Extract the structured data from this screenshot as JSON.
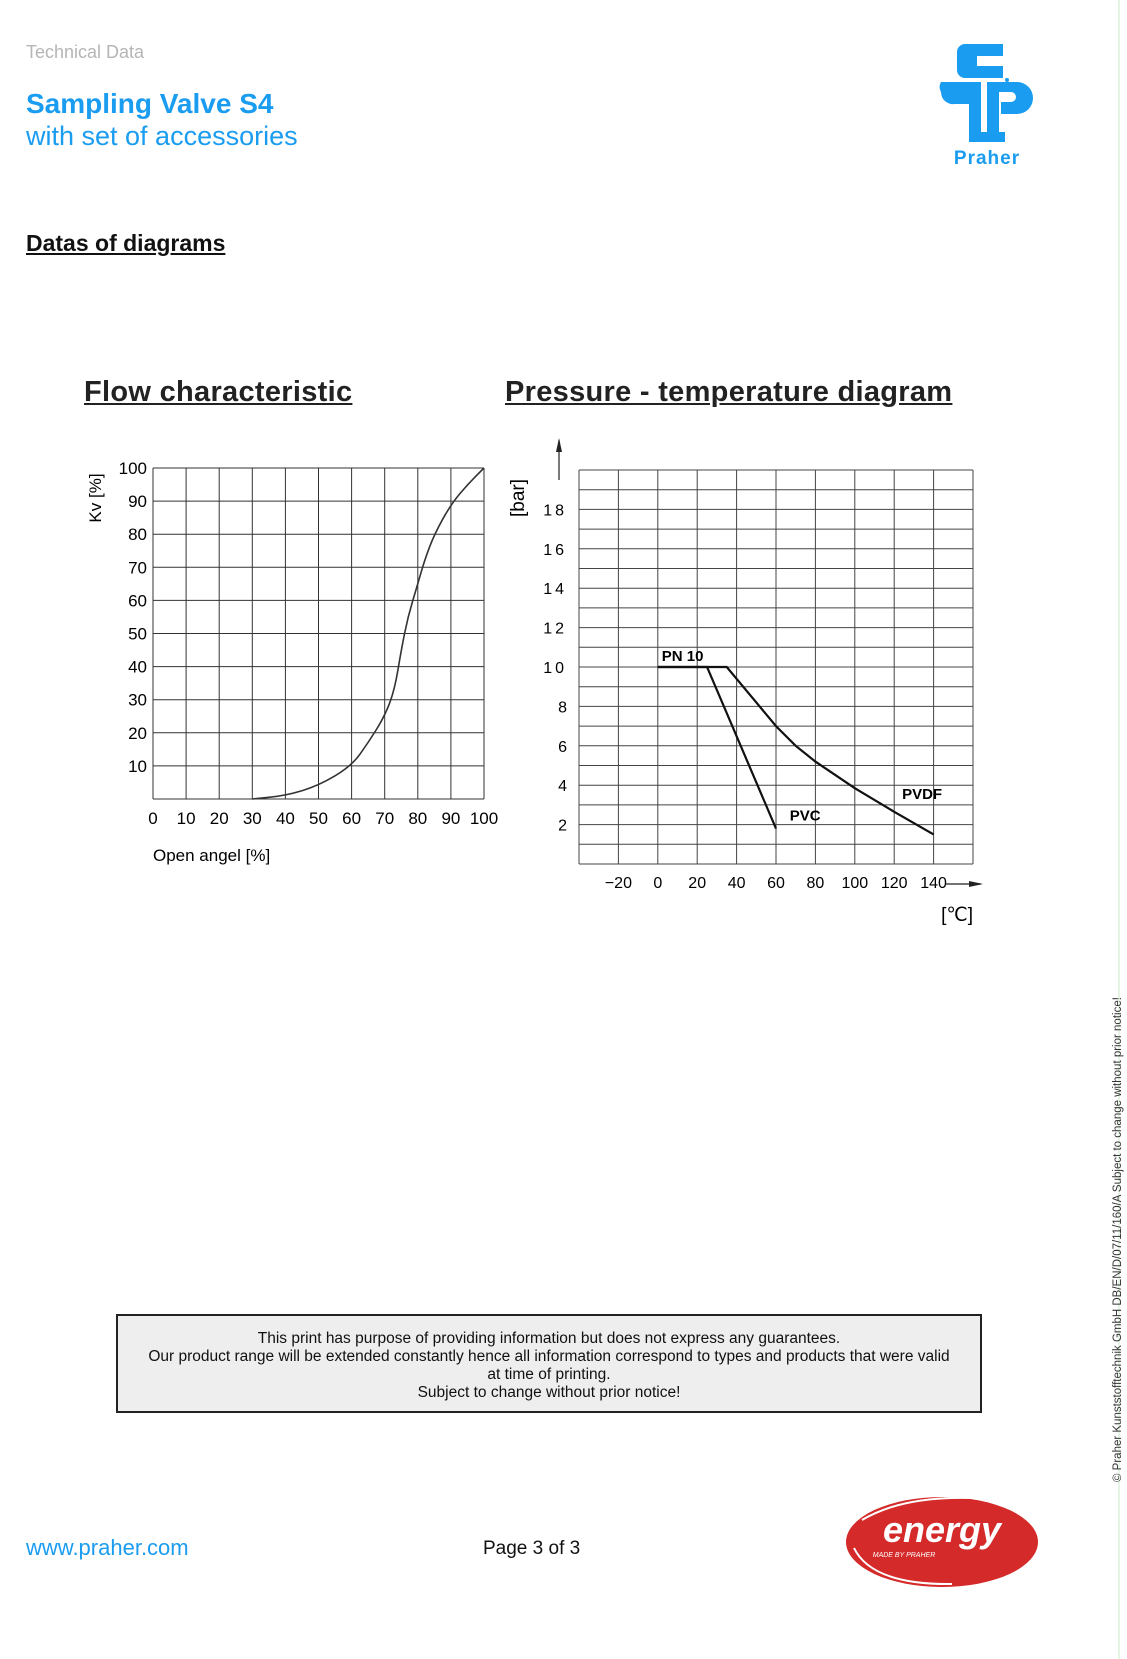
{
  "header": {
    "category": "Technical Data",
    "title": "Sampling Valve S4",
    "subtitle": "with set of accessories",
    "logo_text": "Praher",
    "brand_color": "#1a9cf0"
  },
  "section_title": "Datas of diagrams",
  "chart_data": [
    {
      "type": "line",
      "title": "Flow characteristic",
      "xlabel": "Open angel    [%]",
      "ylabel": "Kv  [%]",
      "xlim": [
        0,
        100
      ],
      "ylim": [
        0,
        100
      ],
      "xticks": [
        "0",
        "10",
        "20",
        "30",
        "40",
        "50",
        "60",
        "70",
        "80",
        "90",
        "100"
      ],
      "yticks": [
        "10",
        "20",
        "30",
        "40",
        "50",
        "60",
        "70",
        "80",
        "90",
        "100"
      ],
      "grid": true,
      "series": [
        {
          "x": [
            30,
            40,
            50,
            60,
            65,
            70,
            73,
            75,
            77,
            80,
            82,
            85,
            90,
            95,
            100
          ],
          "y": [
            0,
            1,
            4,
            10,
            17,
            25,
            33,
            45,
            55,
            65,
            72,
            80,
            89,
            95,
            100
          ]
        }
      ]
    },
    {
      "type": "line",
      "title": "Pressure - temperature diagram",
      "xlabel": "[℃]",
      "ylabel": "[bar]",
      "xlim": [
        -40,
        160
      ],
      "ylim": [
        0,
        20
      ],
      "xticks": [
        "-20",
        "0",
        "20",
        "40",
        "60",
        "80",
        "100",
        "120",
        "140"
      ],
      "yticks": [
        "2",
        "4",
        "6",
        "8",
        "10",
        "12",
        "14",
        "16",
        "18"
      ],
      "grid": true,
      "annotations": [
        "PN  10"
      ],
      "series": [
        {
          "name": "PVC",
          "x": [
            0,
            25,
            60
          ],
          "y": [
            10,
            10,
            1.8
          ]
        },
        {
          "name": "PVDF",
          "x": [
            0,
            35,
            50,
            60,
            70,
            80,
            100,
            120,
            140
          ],
          "y": [
            10,
            10,
            8.2,
            7,
            6,
            5.2,
            3.85,
            2.65,
            1.5
          ]
        }
      ]
    }
  ],
  "disclaimer": [
    "This print has purpose of providing information but does not express any guarantees.",
    "Our product range will be extended constantly hence all information correspond to types and products that were valid",
    "at time of printing.",
    "Subject to change without prior notice!"
  ],
  "footer": {
    "website": "www.praher.com",
    "page": "Page 3 of 3",
    "energy_logo": "energy",
    "energy_tagline": "MADE BY PRAHER",
    "energy_color": "#d42a2a"
  },
  "side_note": "© Praher Kunststofftechnik GmbH DB/EN/D/07/11/160/A Subject to change without prior notice!"
}
